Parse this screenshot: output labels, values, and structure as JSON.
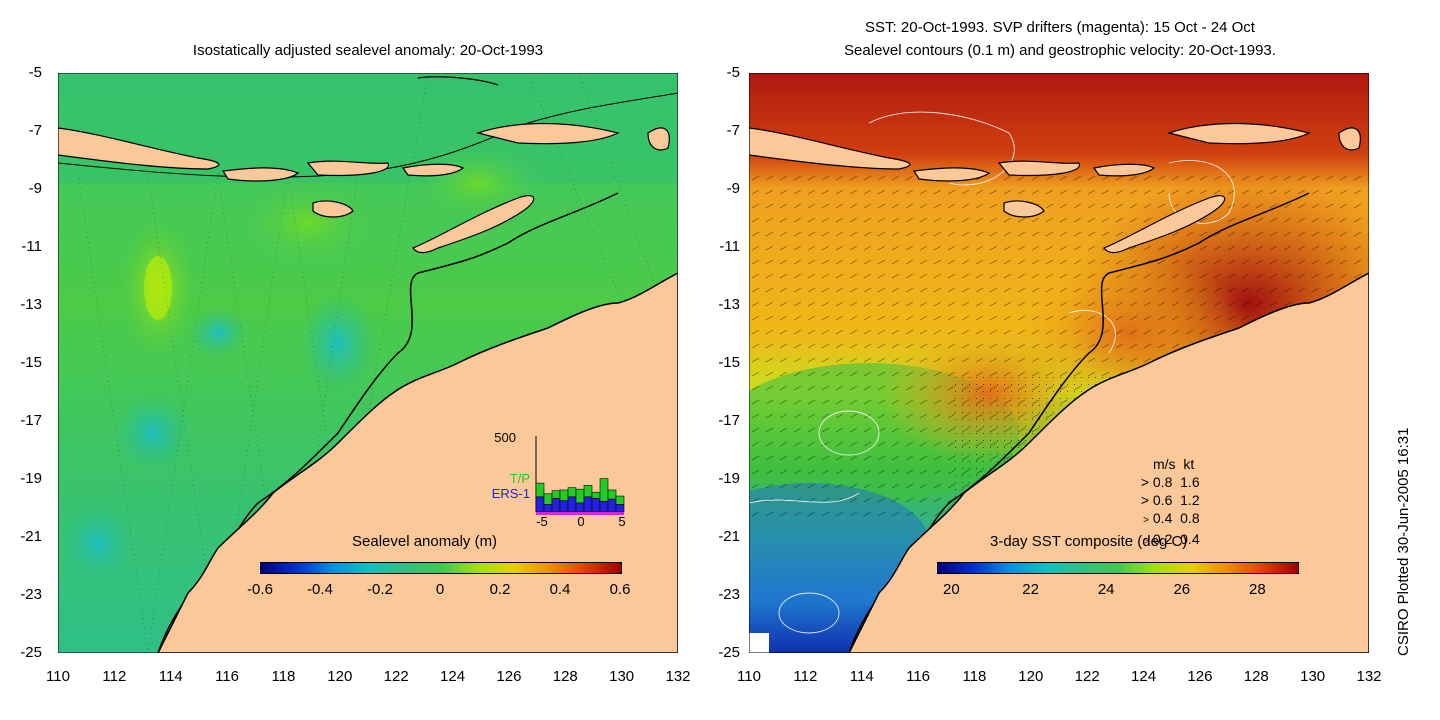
{
  "left_panel": {
    "title": "Isostatically adjusted sealevel anomaly: 20-Oct-1993",
    "colorbar_label": "Sealevel anomaly (m)",
    "colorbar_ticks": [
      "-0.6",
      "-0.4",
      "-0.2",
      "0",
      "0.2",
      "0.4",
      "0.6"
    ],
    "inset": {
      "ymax_label": "500",
      "tp_label": "T/P",
      "ers_label": "ERS-1",
      "x_ticks": [
        "-5",
        "0",
        "5"
      ],
      "tp_color": "#22cc22",
      "ers_color": "#2222dd",
      "bars_tp": [
        0.18,
        0.14,
        0.1,
        0.14,
        0.12,
        0.18,
        0.15,
        0.08,
        0.3,
        0.12,
        0.11
      ],
      "bars_ers": [
        0.2,
        0.1,
        0.18,
        0.15,
        0.2,
        0.12,
        0.2,
        0.18,
        0.14,
        0.17,
        0.1
      ]
    }
  },
  "right_panel": {
    "title_line1": "SST: 20-Oct-1993. SVP drifters (magenta): 15 Oct - 24 Oct",
    "title_line2": "Sealevel contours (0.1 m) and geostrophic velocity: 20-Oct-1993.",
    "colorbar_label": "3-day SST composite (deg C)",
    "colorbar_ticks": [
      "20",
      "22",
      "24",
      "26",
      "28"
    ],
    "legend_header_ms": "m/s",
    "legend_header_kt": "kt",
    "legend_rows": [
      {
        "ms": "0.8",
        "kt": "1.6"
      },
      {
        "ms": "0.6",
        "kt": "1.2"
      },
      {
        "ms": "0.4",
        "kt": "0.8"
      },
      {
        "ms": "0.2",
        "kt": "0.4"
      }
    ]
  },
  "axes": {
    "y_ticks": [
      "-5",
      "-7",
      "-9",
      "-11",
      "-13",
      "-15",
      "-17",
      "-19",
      "-21",
      "-23",
      "-25"
    ],
    "x_ticks": [
      "110",
      "112",
      "114",
      "116",
      "118",
      "120",
      "122",
      "124",
      "126",
      "128",
      "130",
      "132"
    ]
  },
  "credit": "CSIRO Plotted 30-Jun-2005 16:31",
  "colors": {
    "land": "#fbc89a",
    "sla_ocean": "#33c070",
    "sst_warm": "#e8a020",
    "sst_hot": "#a01010"
  }
}
